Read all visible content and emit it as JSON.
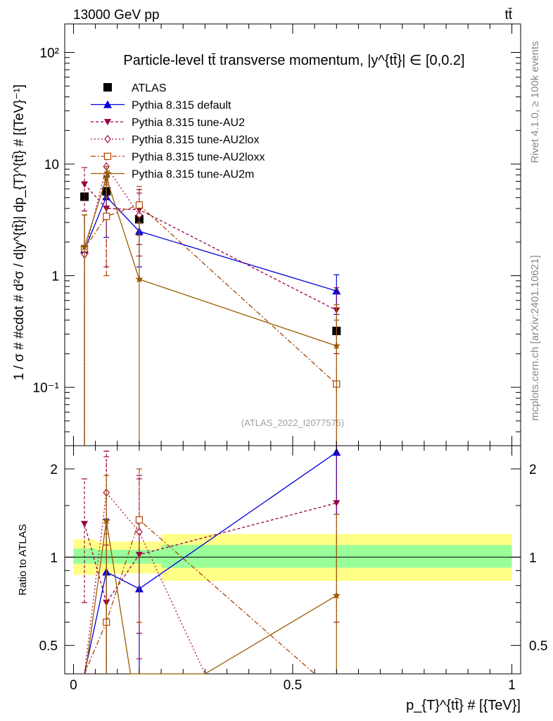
{
  "header": {
    "left": "13000 GeV pp",
    "right": "tt̄",
    "watermark": "(ATLAS_2022_I2077575)",
    "side_rivet": "Rivet 4.1.0, ≥ 100k events",
    "side_mcplots": "mcplots.cern.ch [arXiv:2401.10621]"
  },
  "chart_data": [
    {
      "type": "line",
      "title": "Particle-level tt̄ transverse momentum, |y^{tt̄}| ∈ [0,0.2]",
      "ylabel": "1 / σ # #cdot # d²σ / d|y^{tt̄}| dp_{T}^{tt̄} # [{TeV}⁻¹]",
      "yscale": "log",
      "ylim": [
        0.03,
        180
      ],
      "xlim": [
        -0.02,
        1.02
      ],
      "y_ticks": [
        {
          "value": 100,
          "label": "10²"
        },
        {
          "value": 10,
          "label": "10"
        },
        {
          "value": 1,
          "label": "1"
        },
        {
          "value": 0.1,
          "label": "10⁻¹"
        }
      ],
      "legend_position": "top-left",
      "series": [
        {
          "name": "ATLAS",
          "color": "#000000",
          "marker": "square",
          "dash": "none",
          "x": [
            0.025,
            0.075,
            0.15,
            0.6
          ],
          "y": [
            5.1,
            5.7,
            3.2,
            0.32
          ]
        },
        {
          "name": "Pythia 8.315 default",
          "color": "#0000dd",
          "marker": "triangle-up",
          "dash": "solid",
          "x": [
            0.025,
            0.075,
            0.15,
            0.6
          ],
          "y": [
            1.7,
            5.1,
            2.5,
            0.73
          ],
          "err_lo": [
            0.03,
            2.2,
            1.2,
            0.45
          ],
          "err_hi": [
            3.5,
            7.8,
            4.2,
            1.02
          ]
        },
        {
          "name": "Pythia 8.315 tune-AU2",
          "color": "#990044",
          "marker": "triangle-down",
          "dash": "4,3",
          "x": [
            0.025,
            0.075,
            0.15,
            0.6
          ],
          "y": [
            6.6,
            4.0,
            3.9,
            0.49
          ],
          "err_lo": [
            3.8,
            1.2,
            1.9,
            0.2
          ],
          "err_hi": [
            9.3,
            6.8,
            5.9,
            0.78
          ]
        },
        {
          "name": "Pythia 8.315 tune-AU2lox",
          "color": "#aa1144",
          "marker": "diamond",
          "dash": "2,3",
          "x": [
            0.025,
            0.075,
            0.15,
            0.6
          ],
          "y": [
            1.55,
            9.5,
            3.5,
            null
          ],
          "err_lo": [
            0.03,
            6.5,
            1.5,
            null
          ],
          "err_hi": [
            3.5,
            12.5,
            5.5,
            null
          ]
        },
        {
          "name": "Pythia 8.315 tune-AU2loxx",
          "color": "#b04400",
          "marker": "open-square",
          "dash": "7,3,2,3",
          "x": [
            0.025,
            0.075,
            0.15,
            0.6
          ],
          "y": [
            1.75,
            3.4,
            4.3,
            0.107
          ],
          "err_lo": [
            0.03,
            1.0,
            2.3,
            0.03
          ],
          "err_hi": [
            3.5,
            6.8,
            6.3,
            0.4
          ]
        },
        {
          "name": "Pythia 8.315 tune-AU2m",
          "color": "#9a5a00",
          "marker": "star",
          "dash": "solid",
          "x": [
            0.025,
            0.075,
            0.15,
            0.6
          ],
          "y": [
            1.8,
            7.5,
            0.93,
            0.235
          ],
          "err_lo": [
            0.03,
            5.0,
            0.03,
            0.03
          ],
          "err_hi": [
            3.5,
            9.5,
            3.0,
            0.55
          ]
        }
      ]
    },
    {
      "type": "line",
      "title": "",
      "ylabel": "Ratio to ATLAS",
      "xlabel": "p_{T}^{tt̄} # [{TeV}]",
      "yscale": "log",
      "ylim": [
        0.4,
        2.4
      ],
      "xlim": [
        -0.02,
        1.02
      ],
      "x_ticks": [
        {
          "value": 0,
          "label": "0"
        },
        {
          "value": 0.5,
          "label": "0.5"
        },
        {
          "value": 1,
          "label": "1"
        }
      ],
      "y_ticks": [
        {
          "value": 2,
          "label": "2"
        },
        {
          "value": 1,
          "label": "1"
        },
        {
          "value": 0.5,
          "label": "0.5"
        }
      ],
      "bands": [
        {
          "x0": 0.0,
          "x1": 0.05,
          "stat_lo": 0.95,
          "stat_hi": 1.07,
          "tot_lo": 0.87,
          "tot_hi": 1.15
        },
        {
          "x0": 0.05,
          "x1": 0.1,
          "stat_lo": 0.95,
          "stat_hi": 1.06,
          "tot_lo": 0.88,
          "tot_hi": 1.13
        },
        {
          "x0": 0.1,
          "x1": 0.2,
          "stat_lo": 0.95,
          "stat_hi": 1.06,
          "tot_lo": 0.88,
          "tot_hi": 1.13
        },
        {
          "x0": 0.2,
          "x1": 1.0,
          "stat_lo": 0.92,
          "stat_hi": 1.1,
          "tot_lo": 0.83,
          "tot_hi": 1.2
        }
      ],
      "series": [
        {
          "name": "Pythia 8.315 default",
          "color": "#0000dd",
          "marker": "triangle-up",
          "dash": "solid",
          "x": [
            0.025,
            0.075,
            0.15,
            0.6
          ],
          "y": [
            0.3,
            0.89,
            0.78,
            2.28
          ],
          "err_lo": [
            null,
            0.38,
            0.3,
            1.4
          ],
          "err_hi": [
            null,
            1.35,
            1.32,
            3.2
          ]
        },
        {
          "name": "Pythia 8.315 tune-AU2",
          "color": "#990044",
          "marker": "triangle-down",
          "dash": "4,3",
          "x": [
            0.025,
            0.075,
            0.15,
            0.6
          ],
          "y": [
            1.3,
            0.7,
            1.02,
            1.53
          ],
          "err_lo": [
            0.7,
            0.2,
            0.55,
            0.6
          ],
          "err_hi": [
            1.85,
            2.3,
            1.9,
            2.45
          ]
        },
        {
          "name": "Pythia 8.315 tune-AU2lox",
          "color": "#aa1144",
          "marker": "diamond",
          "dash": "2,3",
          "x": [
            0.025,
            0.075,
            0.15,
            0.3
          ],
          "y": [
            0.3,
            1.66,
            1.22,
            0.3
          ],
          "err_lo": [
            null,
            1.1,
            0.45,
            null
          ],
          "err_hi": [
            null,
            2.2,
            1.85,
            null
          ]
        },
        {
          "name": "Pythia 8.315 tune-AU2loxx",
          "color": "#b04400",
          "marker": "open-square",
          "dash": "7,3,2,3",
          "x": [
            0.025,
            0.075,
            0.15,
            0.55
          ],
          "y": [
            0.3,
            0.6,
            1.34,
            0.3
          ],
          "err_lo": [
            null,
            0.2,
            0.6,
            null
          ],
          "err_hi": [
            null,
            1.2,
            2.0,
            null
          ]
        },
        {
          "name": "Pythia 8.315 tune-AU2m",
          "color": "#9a5a00",
          "marker": "star",
          "dash": "solid",
          "x": [
            0.027,
            0.075,
            0.13,
            0.3,
            0.6
          ],
          "y": [
            0.3,
            1.33,
            0.3,
            0.3,
            0.74
          ],
          "err_lo": [
            null,
            0.3,
            null,
            null,
            0.2
          ],
          "err_hi": [
            null,
            1.9,
            null,
            null,
            1.4
          ]
        }
      ]
    }
  ]
}
